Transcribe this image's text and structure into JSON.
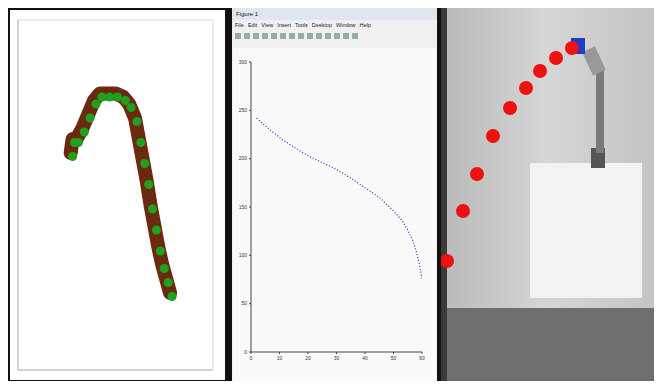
{
  "window": {
    "title": "Figure 1",
    "menu": [
      "File",
      "Edit",
      "View",
      "Insert",
      "Tools",
      "Desktop",
      "Window",
      "Help"
    ]
  },
  "chart_data": [
    {
      "type": "scatter",
      "xlim": [
        0,
        100
      ],
      "ylim": [
        0,
        100
      ],
      "xticks": [
        0,
        20,
        40,
        60,
        80,
        100
      ],
      "yticks": [
        0,
        20,
        40,
        60,
        80,
        100
      ],
      "grid": true,
      "tick_labels": false,
      "series": [
        {
          "type": "line",
          "color": "#6b2a10",
          "x": [
            27,
            28,
            30,
            33,
            36,
            39,
            42,
            46,
            50,
            54,
            57,
            60,
            62,
            64,
            66,
            68,
            70,
            72,
            74,
            76,
            78
          ],
          "values": [
            62,
            66,
            66,
            69,
            73,
            77,
            79,
            79,
            79,
            78,
            76,
            72,
            66,
            60,
            54,
            47,
            41,
            35,
            30,
            26,
            22
          ]
        },
        {
          "type": "scatter",
          "color": "#1fa01f",
          "marker": "circle",
          "x": [
            28,
            29,
            31,
            34,
            37,
            40,
            43,
            47,
            51,
            55,
            58,
            61,
            63,
            65,
            67,
            69,
            71,
            73,
            75,
            77,
            79
          ],
          "values": [
            61,
            65,
            65,
            68,
            72,
            76,
            78,
            78,
            78,
            77,
            75,
            71,
            65,
            59,
            53,
            46,
            40,
            34,
            29,
            25,
            21
          ]
        }
      ]
    },
    {
      "type": "line",
      "color": "#2a2ad0",
      "line_style": "dotted",
      "x": [
        2,
        5,
        10,
        15,
        20,
        25,
        30,
        35,
        40,
        45,
        50,
        53,
        55,
        57,
        58,
        59,
        60
      ],
      "values": [
        242,
        234,
        222,
        212,
        203,
        196,
        189,
        180,
        170,
        160,
        146,
        136,
        126,
        114,
        104,
        92,
        76
      ],
      "xlim": [
        0,
        60
      ],
      "ylim": [
        0,
        300
      ],
      "xticks": [
        0,
        10,
        20,
        30,
        40,
        50,
        60
      ],
      "yticks": [
        0,
        50,
        100,
        150,
        200,
        250,
        300
      ]
    }
  ]
}
